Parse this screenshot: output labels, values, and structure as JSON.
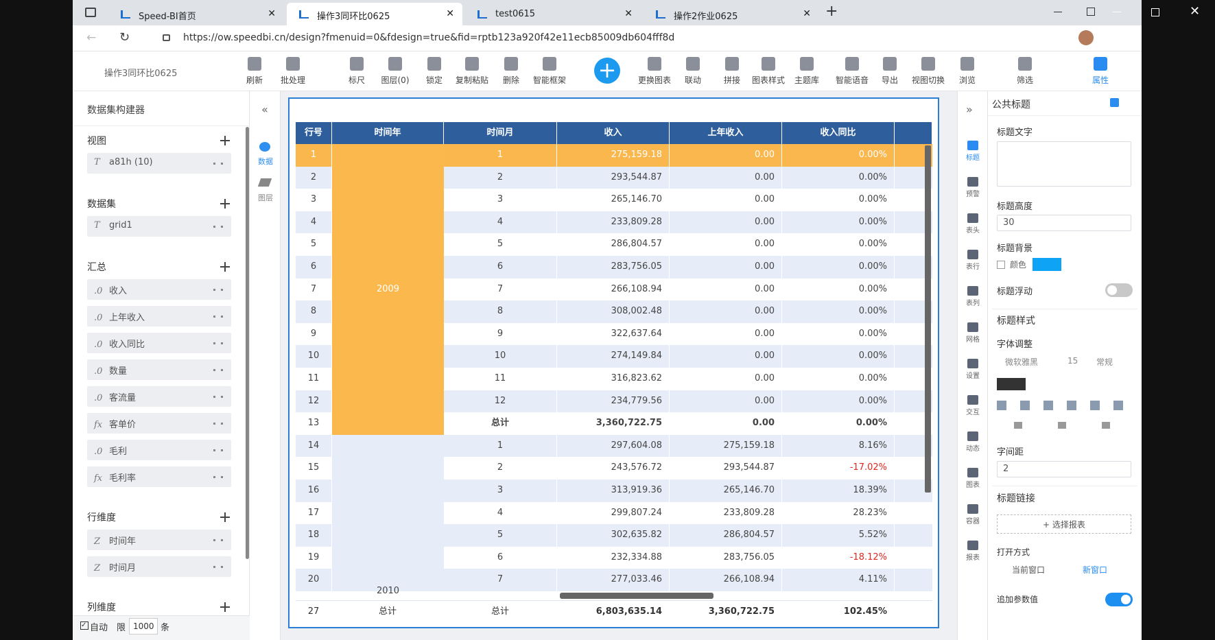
{
  "browser": {
    "tabs": [
      "Speed-BI首页",
      "操作3同环比0625",
      "test0615",
      "操作2作业0625"
    ],
    "url": "https://ow.speedbi.cn/design?fmenuid=0&fdesign=true&fid=rptb123a920f42e11ecb85009db604fff8d"
  },
  "toolbar": {
    "report_name": "操作3同环比0625",
    "buttons": [
      "刷新",
      "批处理",
      "标尺",
      "图层(0)",
      "锁定",
      "复制粘贴",
      "删除",
      "智能框架",
      "更换图表",
      "联动",
      "拼接",
      "图表样式",
      "主题库",
      "智能语音",
      "导出",
      "视图切换",
      "浏览",
      "筛选",
      "属性"
    ]
  },
  "left_panel": {
    "title": "数据集构建器",
    "sections": [
      {
        "title": "视图",
        "items": [
          {
            "icon": "T",
            "label": "a81h (10)"
          }
        ]
      },
      {
        "title": "数据集",
        "items": [
          {
            "icon": "T",
            "label": "grid1"
          }
        ]
      },
      {
        "title": "汇总",
        "items": [
          {
            "icon": ".0",
            "label": "收入"
          },
          {
            "icon": ".0",
            "label": "上年收入"
          },
          {
            "icon": ".0",
            "label": "收入同比"
          },
          {
            "icon": ".0",
            "label": "数量"
          },
          {
            "icon": ".0",
            "label": "客流量"
          },
          {
            "icon": "fx",
            "label": "客单价"
          },
          {
            "icon": ".0",
            "label": "毛利"
          },
          {
            "icon": "fx",
            "label": "毛利率"
          }
        ]
      },
      {
        "title": "行维度",
        "items": [
          {
            "icon": "Z",
            "label": "时间年"
          },
          {
            "icon": "Z",
            "label": "时间月"
          }
        ]
      },
      {
        "title": "列维度",
        "items": []
      }
    ],
    "footer": {
      "auto": "自动",
      "limit": "限",
      "count": "1000",
      "unit": "条"
    }
  },
  "side_tabs": [
    "数据",
    "图层"
  ],
  "table": {
    "headers": [
      "行号",
      "时间年",
      "时间月",
      "收入",
      "上年收入",
      "收入同比"
    ],
    "year_groups": [
      "2009",
      "2010"
    ],
    "rows": [
      [
        "1",
        "1",
        "275,159.18",
        "0.00",
        "0.00%"
      ],
      [
        "2",
        "2",
        "293,544.87",
        "0.00",
        "0.00%"
      ],
      [
        "3",
        "3",
        "265,146.70",
        "0.00",
        "0.00%"
      ],
      [
        "4",
        "4",
        "233,809.28",
        "0.00",
        "0.00%"
      ],
      [
        "5",
        "5",
        "286,804.57",
        "0.00",
        "0.00%"
      ],
      [
        "6",
        "6",
        "283,756.05",
        "0.00",
        "0.00%"
      ],
      [
        "7",
        "7",
        "266,108.94",
        "0.00",
        "0.00%"
      ],
      [
        "8",
        "8",
        "308,002.48",
        "0.00",
        "0.00%"
      ],
      [
        "9",
        "9",
        "322,637.64",
        "0.00",
        "0.00%"
      ],
      [
        "10",
        "10",
        "274,149.84",
        "0.00",
        "0.00%"
      ],
      [
        "11",
        "11",
        "316,823.62",
        "0.00",
        "0.00%"
      ],
      [
        "12",
        "12",
        "234,779.56",
        "0.00",
        "0.00%"
      ],
      [
        "13",
        "总计",
        "3,360,722.75",
        "0.00",
        "0.00%"
      ],
      [
        "14",
        "1",
        "297,604.08",
        "275,159.18",
        "8.16%"
      ],
      [
        "15",
        "2",
        "243,576.72",
        "293,544.87",
        "-17.02%"
      ],
      [
        "16",
        "3",
        "313,919.36",
        "265,146.70",
        "18.39%"
      ],
      [
        "17",
        "4",
        "299,807.24",
        "233,809.28",
        "28.23%"
      ],
      [
        "18",
        "5",
        "302,635.82",
        "286,804.57",
        "5.52%"
      ],
      [
        "19",
        "6",
        "232,334.88",
        "283,756.05",
        "-18.12%"
      ],
      [
        "20",
        "7",
        "277,033.46",
        "266,108.94",
        "4.11%"
      ]
    ],
    "footer": [
      "27",
      "总计",
      "总计",
      "6,803,635.14",
      "3,360,722.75",
      "102.45%"
    ]
  },
  "right_icons": [
    "标题",
    "预警",
    "表头",
    "表行",
    "表列",
    "网格",
    "设置",
    "交互",
    "动态",
    "图表",
    "容器",
    "报表"
  ],
  "right_panel": {
    "title": "公共标题",
    "title_text": "标题文字",
    "title_height": "标题高度",
    "height_value": "30",
    "title_bg": "标题背景",
    "color": "颜色",
    "title_float": "标题浮动",
    "title_style": "标题样式",
    "font_adjust": "字体调整",
    "font": "微软雅黑",
    "font_size": "15",
    "font_weight": "常规",
    "letter_spacing": "字间距",
    "spacing_value": "2",
    "title_link": "标题链接",
    "select_report": "选择报表",
    "open_mode": "打开方式",
    "current_window": "当前窗口",
    "new_window": "新窗口",
    "append_params": "追加参数值"
  }
}
